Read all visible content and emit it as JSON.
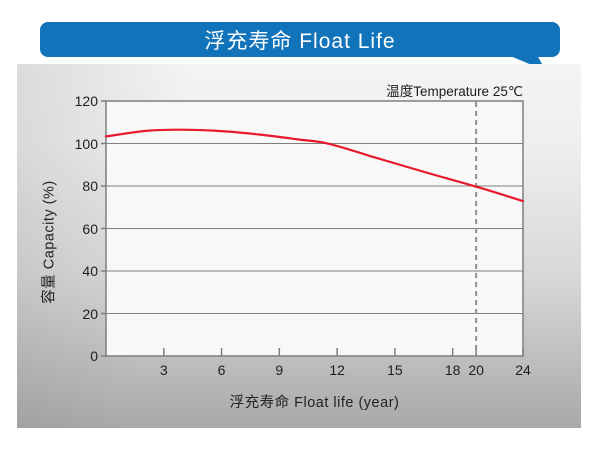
{
  "banner": {
    "title": "浮充寿命 Float Life",
    "background_color": "#1173b9",
    "text_color": "#ffffff"
  },
  "chart_data": {
    "type": "line",
    "title": "浮充寿命 Float Life",
    "xlabel": "浮充寿命 Float life (year)",
    "ylabel": "容量 Capacity (%)",
    "annotation": "温度Temperature 25℃",
    "x_ticks": [
      3,
      6,
      9,
      12,
      15,
      18,
      20,
      24
    ],
    "y_ticks": [
      0,
      20,
      40,
      60,
      80,
      100,
      120
    ],
    "xlim": [
      0,
      24
    ],
    "ylim": [
      0,
      120
    ],
    "grid": "horizontal",
    "legend": "none",
    "x_axis_note": "x scale is compressed after year 18",
    "reference_line": {
      "x": 20,
      "style": "dashed",
      "color": "#8f8f8f"
    },
    "series": [
      {
        "name": "capacity",
        "color": "#e8182d",
        "points": [
          [
            0,
            103.3
          ],
          [
            2,
            105.9
          ],
          [
            3.8,
            106.5
          ],
          [
            5.9,
            105.9
          ],
          [
            8,
            104.2
          ],
          [
            10,
            101.9
          ],
          [
            11.6,
            99.8
          ],
          [
            14.2,
            92.8
          ],
          [
            16.8,
            85.9
          ],
          [
            20,
            79.7
          ],
          [
            24,
            72.9
          ]
        ]
      }
    ]
  },
  "colors": {
    "grid": "#7f7f7f",
    "plot_background": "#f8f8f8",
    "panel_bottom_gray": "#a9a9a9",
    "curve_red": "#e8182d",
    "banner_blue": "#1173b9"
  }
}
